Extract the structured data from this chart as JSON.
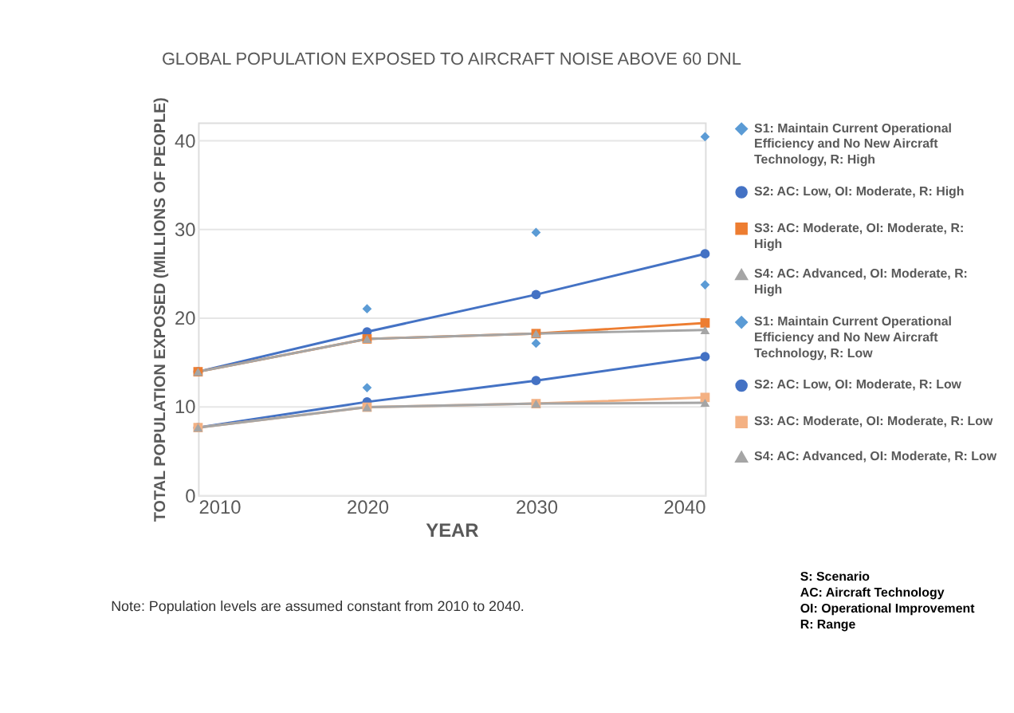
{
  "chart_data": {
    "type": "line",
    "title": "GLOBAL POPULATION EXPOSED TO AIRCRAFT NOISE ABOVE 60 DNL",
    "xlabel": "YEAR",
    "ylabel": "TOTAL POPULATION EXPOSED (MILLIONS OF PEOPLE)",
    "x": [
      2010,
      2020,
      2030,
      2040
    ],
    "xlim": [
      2010,
      2040
    ],
    "xticks": [
      2010,
      2020,
      2030,
      2040
    ],
    "ylim": [
      0,
      42
    ],
    "yticks": [
      0,
      10,
      20,
      30,
      40
    ],
    "grid": "y",
    "legend": "right",
    "series": [
      {
        "name": "S1: Maintain Current Operational Efficiency and No New Aircraft Technology, R: High",
        "type": "scatter",
        "marker": "diamond",
        "color": "#5b9bd5",
        "values": [
          null,
          21.0,
          29.6,
          40.4
        ]
      },
      {
        "name": "S2: AC: Low, OI: Moderate, R: High",
        "marker": "circle",
        "color": "#4472c4",
        "values": [
          13.9,
          18.4,
          22.6,
          27.2
        ]
      },
      {
        "name": "S3: AC: Moderate, OI: Moderate, R: High",
        "marker": "square",
        "color": "#ed7d31",
        "values": [
          13.9,
          17.6,
          18.2,
          19.4
        ]
      },
      {
        "name": "S4: AC: Advanced, OI: Moderate, R: High",
        "marker": "triangle",
        "color": "#a5a5a5",
        "values": [
          13.9,
          17.6,
          18.2,
          18.6
        ]
      },
      {
        "name": "S1: Maintain Current Operational Efficiency and No New Aircraft Technology, R: Low",
        "type": "scatter",
        "marker": "diamond",
        "color": "#5b9bd5",
        "values": [
          null,
          12.1,
          17.1,
          23.7
        ]
      },
      {
        "name": "S2: AC: Low, OI: Moderate, R: Low",
        "marker": "circle",
        "color": "#4472c4",
        "values": [
          7.6,
          10.5,
          12.9,
          15.6
        ]
      },
      {
        "name": "S3: AC: Moderate, OI: Moderate, R: Low",
        "marker": "square",
        "color": "#f4b183",
        "values": [
          7.6,
          9.9,
          10.3,
          11.0
        ]
      },
      {
        "name": "S4: AC: Advanced, OI: Moderate, R: Low",
        "marker": "triangle",
        "color": "#a5a5a5",
        "values": [
          7.6,
          9.9,
          10.3,
          10.4
        ]
      }
    ],
    "annotations": [
      "Note: Population levels are assumed constant from 2010 to 2040.",
      "S: Scenario",
      "AC: Aircraft Technology",
      "OI: Operational Improvement",
      "R: Range"
    ]
  }
}
